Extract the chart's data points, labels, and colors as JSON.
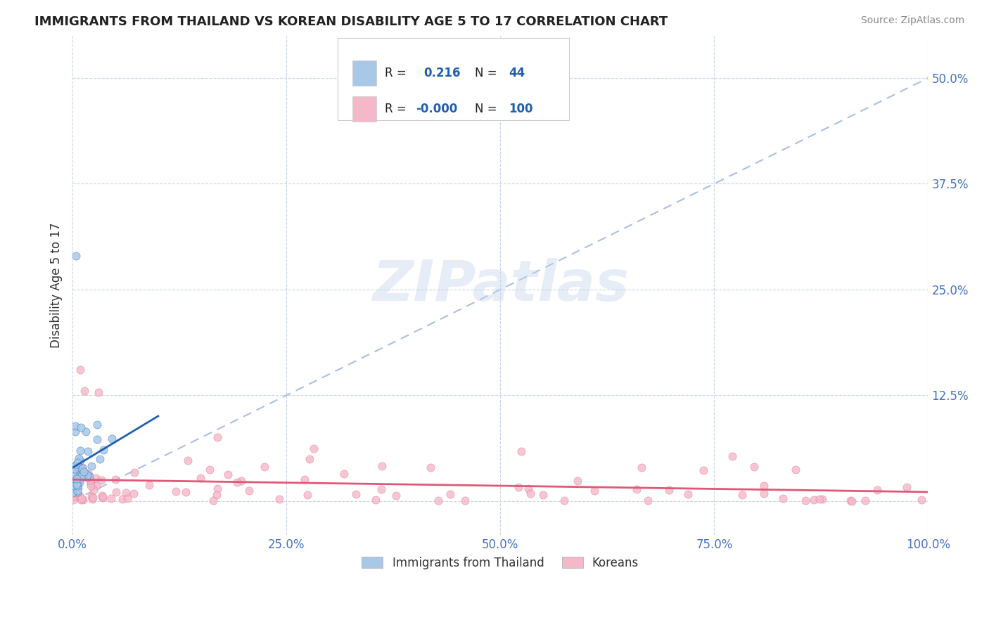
{
  "title": "IMMIGRANTS FROM THAILAND VS KOREAN DISABILITY AGE 5 TO 17 CORRELATION CHART",
  "source_text": "Source: ZipAtlas.com",
  "ylabel": "Disability Age 5 to 17",
  "xlim": [
    0.0,
    1.0
  ],
  "ylim": [
    -0.04,
    0.55
  ],
  "x_ticks": [
    0.0,
    0.25,
    0.5,
    0.75,
    1.0
  ],
  "x_tick_labels": [
    "0.0%",
    "25.0%",
    "50.0%",
    "75.0%",
    "100.0%"
  ],
  "y_ticks": [
    0.0,
    0.125,
    0.25,
    0.375,
    0.5
  ],
  "y_tick_labels": [
    "",
    "12.5%",
    "25.0%",
    "37.5%",
    "50.0%"
  ],
  "watermark": "ZIPatlas",
  "legend_labels": [
    "Immigrants from Thailand",
    "Koreans"
  ],
  "blue_R": "0.216",
  "blue_N": "44",
  "pink_R": "-0.000",
  "pink_N": "100",
  "blue_color": "#a8c8e8",
  "pink_color": "#f4b8c8",
  "blue_line_color": "#2060b0",
  "pink_line_color": "#e05878",
  "dash_line_color": "#a8c0e0",
  "background_color": "#ffffff",
  "grid_color": "#c8d4e8",
  "title_color": "#222222",
  "tick_color": "#4472c4",
  "source_color": "#888888"
}
